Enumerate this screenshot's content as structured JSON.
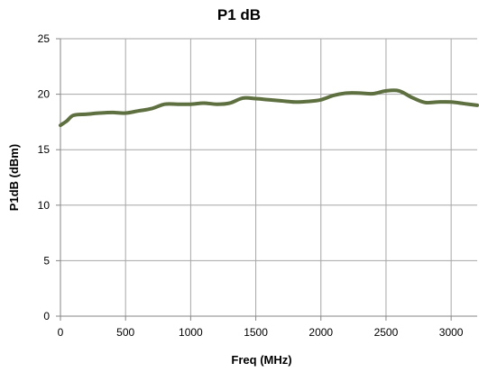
{
  "chart_data": {
    "type": "line",
    "title": "P1 dB",
    "xlabel": "Freq (MHz)",
    "ylabel": "P1dB (dBm)",
    "xlim": [
      0,
      3200
    ],
    "ylim": [
      0,
      25
    ],
    "x_ticks": [
      0,
      500,
      1000,
      1500,
      2000,
      2500,
      3000
    ],
    "y_ticks": [
      0,
      5,
      10,
      15,
      20,
      25
    ],
    "grid": true,
    "legend": "none",
    "line_color": "#5f7040",
    "series": [
      {
        "x": [
          0,
          50,
          100,
          200,
          300,
          400,
          500,
          600,
          700,
          800,
          900,
          1000,
          1100,
          1200,
          1300,
          1400,
          1500,
          1600,
          1700,
          1800,
          1900,
          2000,
          2100,
          2200,
          2300,
          2400,
          2500,
          2600,
          2700,
          2800,
          2900,
          3000,
          3100,
          3200
        ],
        "y": [
          17.2,
          17.6,
          18.1,
          18.2,
          18.3,
          18.35,
          18.3,
          18.5,
          18.7,
          19.1,
          19.1,
          19.1,
          19.2,
          19.1,
          19.2,
          19.65,
          19.6,
          19.5,
          19.4,
          19.3,
          19.35,
          19.5,
          19.9,
          20.1,
          20.1,
          20.05,
          20.3,
          20.3,
          19.7,
          19.25,
          19.3,
          19.3,
          19.15,
          19.0
        ]
      }
    ]
  }
}
